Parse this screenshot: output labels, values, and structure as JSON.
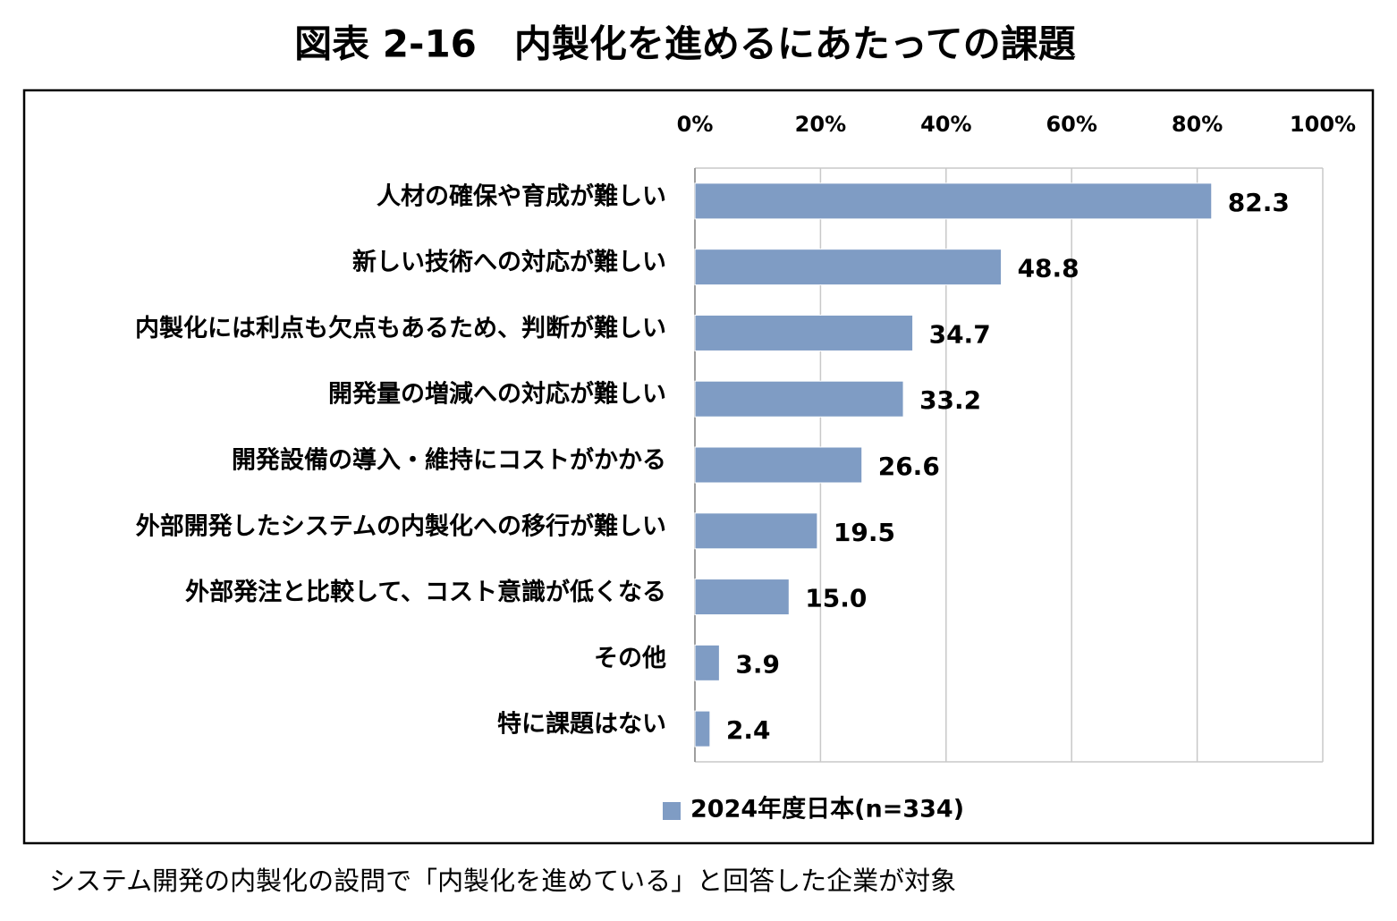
{
  "chart_data": {
    "type": "bar",
    "orientation": "horizontal",
    "title": "図表 2-16　内製化を進めるにあたっての課題",
    "categories": [
      "人材の確保や育成が難しい",
      "新しい技術への対応が難しい",
      "内製化には利点も欠点もあるため、判断が難しい",
      "開発量の増減への対応が難しい",
      "開発設備の導入・維持にコストがかかる",
      "外部開発したシステムの内製化への移行が難しい",
      "外部発注と比較して、コスト意識が低くなる",
      "その他",
      "特に課題はない"
    ],
    "series": [
      {
        "name": "2024年度日本(n=334)",
        "color": "#7f9cc4",
        "values": [
          82.3,
          48.8,
          34.7,
          33.2,
          26.6,
          19.5,
          15.0,
          3.9,
          2.4
        ],
        "value_labels": [
          "82.3",
          "48.8",
          "34.7",
          "33.2",
          "26.6",
          "19.5",
          "15.0",
          "3.9",
          "2.4"
        ]
      }
    ],
    "xlim": [
      0,
      100
    ],
    "xticks": [
      {
        "value": 0,
        "label": "0%"
      },
      {
        "value": 20,
        "label": "20%"
      },
      {
        "value": 40,
        "label": "40%"
      },
      {
        "value": 60,
        "label": "60%"
      },
      {
        "value": 80,
        "label": "80%"
      },
      {
        "value": 100,
        "label": "100%"
      }
    ],
    "grid": true,
    "legend": "bottom",
    "footnote": "システム開発の内製化の設問で「内製化を進めている」と回答した企業が対象"
  }
}
